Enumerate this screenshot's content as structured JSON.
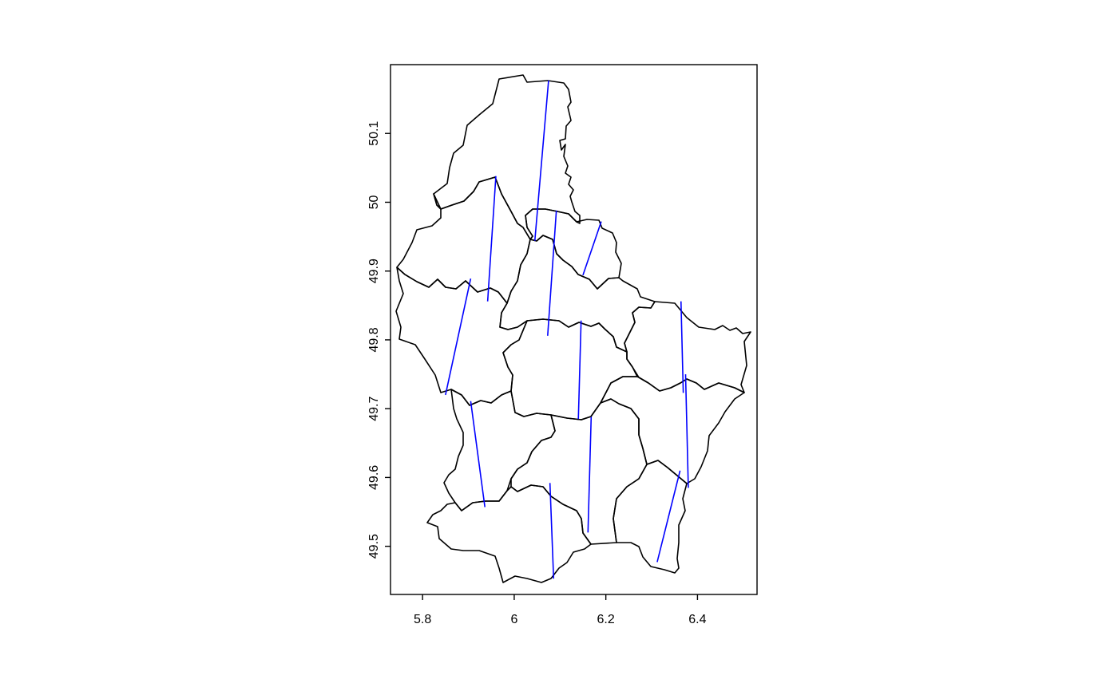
{
  "map": {
    "title": "",
    "x_axis": {
      "range": [
        5.73,
        6.53
      ],
      "ticks": [
        5.8,
        6.0,
        6.2,
        6.4
      ],
      "tick_labels": [
        "5.8",
        "6",
        "6.2",
        "6.4"
      ]
    },
    "y_axis": {
      "range": [
        49.43,
        50.2
      ],
      "ticks": [
        49.5,
        49.6,
        49.7,
        49.8,
        49.9,
        50.0,
        50.1
      ],
      "tick_labels": [
        "49.5",
        "49.6",
        "49.7",
        "49.8",
        "49.9",
        "50",
        "50.1"
      ]
    },
    "colors": {
      "boundaries": "#000000",
      "segments": "#0000ff"
    },
    "segments": [
      {
        "x1": 6.075,
        "y1": 50.177,
        "x2": 6.045,
        "y2": 49.944
      },
      {
        "x1": 5.96,
        "y1": 50.038,
        "x2": 5.942,
        "y2": 49.856
      },
      {
        "x1": 6.092,
        "y1": 49.988,
        "x2": 6.073,
        "y2": 49.806
      },
      {
        "x1": 6.19,
        "y1": 49.972,
        "x2": 6.15,
        "y2": 49.894
      },
      {
        "x1": 5.905,
        "y1": 49.889,
        "x2": 5.85,
        "y2": 49.72
      },
      {
        "x1": 6.146,
        "y1": 49.828,
        "x2": 6.14,
        "y2": 49.685
      },
      {
        "x1": 6.364,
        "y1": 49.856,
        "x2": 6.369,
        "y2": 49.723
      },
      {
        "x1": 5.905,
        "y1": 49.711,
        "x2": 5.936,
        "y2": 49.557
      },
      {
        "x1": 6.168,
        "y1": 49.688,
        "x2": 6.161,
        "y2": 49.52
      },
      {
        "x1": 6.374,
        "y1": 49.75,
        "x2": 6.38,
        "y2": 49.585
      },
      {
        "x1": 6.078,
        "y1": 49.592,
        "x2": 6.086,
        "y2": 49.453
      },
      {
        "x1": 6.362,
        "y1": 49.61,
        "x2": 6.312,
        "y2": 49.477
      }
    ]
  }
}
